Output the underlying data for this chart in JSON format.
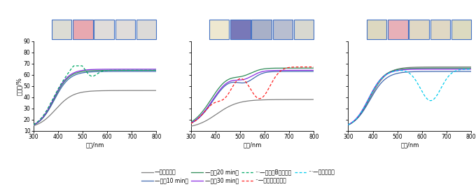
{
  "xlim": [
    300,
    800
  ],
  "ylim": [
    10,
    90
  ],
  "yticks": [
    10,
    20,
    30,
    40,
    50,
    60,
    70,
    80,
    90
  ],
  "xticks": [
    300,
    400,
    500,
    600,
    700,
    800
  ],
  "xlabel": "波长/nm",
  "ylabel": "反射率/%",
  "panel1_img_colors": [
    "#DCDCD4",
    "#E8A8B0",
    "#E0DCDA",
    "#E0DCDA",
    "#DCDAD8"
  ],
  "panel2_img_colors": [
    "#EEE8D0",
    "#7878B8",
    "#A8B0C8",
    "#B8BED0",
    "#D8D8D0"
  ],
  "panel3_img_colors": [
    "#DDD8C0",
    "#E8B0B8",
    "#E0D8C4",
    "#E0D8C4",
    "#DCDAC0"
  ],
  "img_border_color": "#4472C4",
  "color_gray": "#808080",
  "color_blue": "#4169B0",
  "color_green": "#2E8B57",
  "color_purple": "#8A2BE2",
  "color_green_dash": "#00AA66",
  "color_red_dash": "#FF2020",
  "color_cyan_dash": "#00CCEE",
  "legend_row1": [
    {
      "label": "—原始涂层；",
      "color": "#808080",
      "ls": "-"
    },
    {
      "label": "—光照10 min；",
      "color": "#4169B0",
      "ls": "-"
    },
    {
      "label": "—光照20 min；",
      "color": "#2E8B57",
      "ls": "-"
    },
    {
      "label": "—光照30 min；",
      "color": "#8A2BE2",
      "ls": "-"
    }
  ],
  "legend_row2": [
    {
      "label": "···—罗丹明B污染后；",
      "color": "#00AA66",
      "ls": "--"
    },
    {
      "label": "··—甲基紫污染后；",
      "color": "#FF2020",
      "ls": "--"
    },
    {
      "label": "···—果汁污染后",
      "color": "#00CCEE",
      "ls": "--"
    }
  ]
}
